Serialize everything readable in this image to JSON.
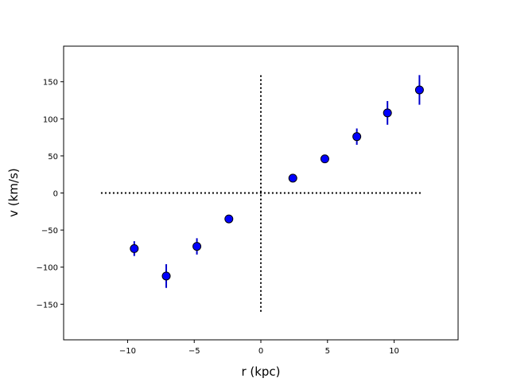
{
  "chart_data": {
    "type": "scatter",
    "xlabel": "r (kpc)",
    "ylabel": "v (km/s)",
    "xlim": [
      -14.8,
      14.8
    ],
    "ylim": [
      -198,
      198
    ],
    "x_ticks": [
      -10,
      -5,
      0,
      5,
      10
    ],
    "x_tick_labels": [
      "−10",
      "−5",
      "0",
      "5",
      "10"
    ],
    "y_ticks": [
      -150,
      -100,
      -50,
      0,
      50,
      100,
      150
    ],
    "y_tick_labels": [
      "−150",
      "−100",
      "−50",
      "0",
      "50",
      "100",
      "150"
    ],
    "grid": false,
    "marker_color": "#0000ff",
    "errorbar_color": "#0000cc",
    "reference_line_color": "#000000",
    "reference_lines": {
      "horizontal": {
        "y": 0,
        "x_from": -12,
        "x_to": 12,
        "style": "dotted"
      },
      "vertical": {
        "x": 0,
        "y_from": -160,
        "y_to": 160,
        "style": "dotted"
      }
    },
    "series": [
      {
        "x": [
          -9.5,
          -7.1,
          -4.8,
          -2.4,
          2.4,
          4.8,
          7.2,
          9.5,
          11.9
        ],
        "y": [
          -75,
          -112,
          -72,
          -35,
          20,
          46,
          76,
          108,
          139
        ],
        "yerr": [
          10,
          16,
          11,
          4,
          4,
          5,
          11,
          16,
          20
        ]
      }
    ]
  }
}
